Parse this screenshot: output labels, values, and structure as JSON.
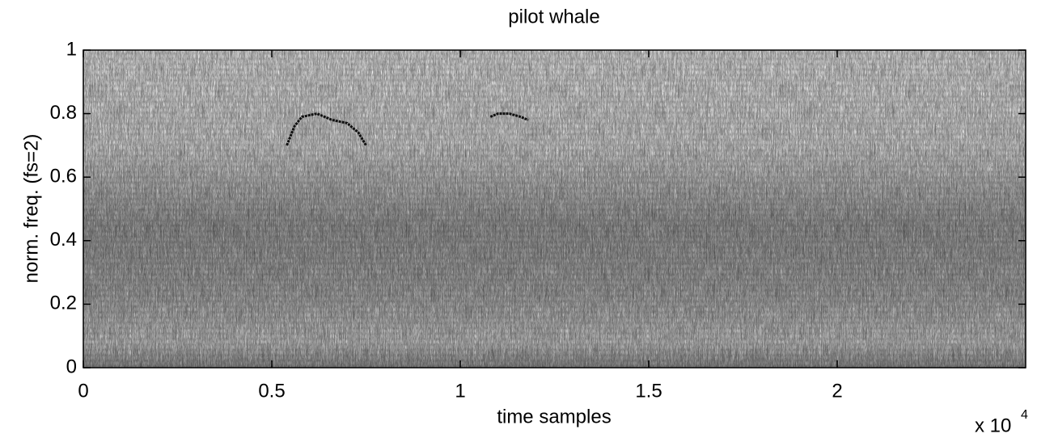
{
  "chart_data": {
    "type": "spectrogram",
    "title": "pilot whale",
    "x_label": "time samples",
    "y_label": "norm. freq. (fs=2)",
    "x_multiplier": "x 10",
    "x_multiplier_exponent": "4",
    "xlim": [
      0,
      25000
    ],
    "ylim": [
      0,
      1
    ],
    "xticks": [
      0,
      {
        "value": 5000,
        "label": "0.5"
      },
      {
        "value": 10000,
        "label": "1"
      },
      {
        "value": 15000,
        "label": "1.5"
      },
      {
        "value": 20000,
        "label": "2"
      }
    ],
    "yticks": [
      0,
      0.2,
      0.4,
      0.6,
      0.8,
      1
    ],
    "traces": [
      {
        "x": [
          5400,
          5600,
          5800,
          6200,
          6600,
          7000,
          7300,
          7500
        ],
        "y": [
          0.7,
          0.76,
          0.79,
          0.8,
          0.78,
          0.77,
          0.74,
          0.7
        ]
      },
      {
        "x": [
          10800,
          11000,
          11300,
          11600,
          11800
        ],
        "y": [
          0.79,
          0.8,
          0.8,
          0.79,
          0.78
        ]
      }
    ],
    "color": "#111"
  }
}
